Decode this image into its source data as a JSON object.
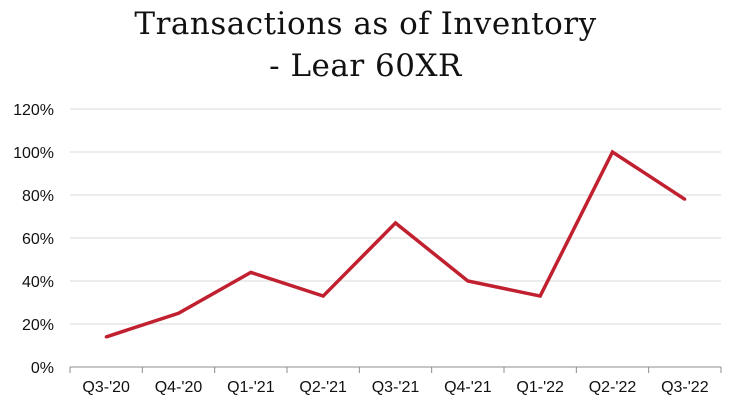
{
  "chart_data": {
    "type": "line",
    "title_lines": [
      "Transactions as of Inventory",
      "- Lear 60XR"
    ],
    "xlabel": "",
    "ylabel": "",
    "categories": [
      "Q3-'20",
      "Q4-'20",
      "Q1-'21",
      "Q2-'21",
      "Q3-'21",
      "Q4-'21",
      "Q1-'22",
      "Q2-'22",
      "Q3-'22"
    ],
    "series": [
      {
        "values": [
          14,
          25,
          44,
          33,
          67,
          40,
          33,
          100,
          78
        ]
      }
    ],
    "ylim": [
      0,
      120
    ],
    "yticks": [
      0,
      20,
      40,
      60,
      80,
      100,
      120
    ],
    "ytick_labels": [
      "0%",
      "20%",
      "40%",
      "60%",
      "80%",
      "100%",
      "120%"
    ],
    "grid": "horizontal",
    "legend": "none",
    "colors": {
      "line": "#c0202f",
      "grid": "#d9d9d9",
      "axis": "#8c8c8c",
      "text": "#111111"
    }
  }
}
